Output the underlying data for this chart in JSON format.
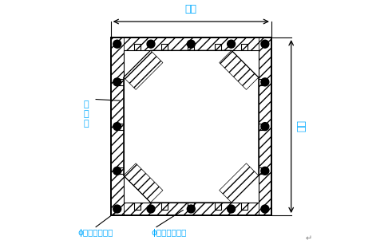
{
  "fig_width": 4.91,
  "fig_height": 3.11,
  "dpi": 100,
  "bg_color": "#ffffff",
  "line_color": "#000000",
  "dim_color": "#00aaff",
  "annotation_color": "#00aaff",
  "gray_color": "#888888",
  "ox": 0.155,
  "oy": 0.13,
  "ow": 0.65,
  "oh": 0.72,
  "st": 0.052,
  "chf": 0.2,
  "diag_band": 0.07,
  "rebar_r": 0.016,
  "title_top": "柱宽",
  "title_right": "柱宽",
  "label_zhu": "柱\n钢\n筋",
  "label_d16": "ϕ１６钢筋制作",
  "label_d12": "ϕ１２钢筋制作"
}
